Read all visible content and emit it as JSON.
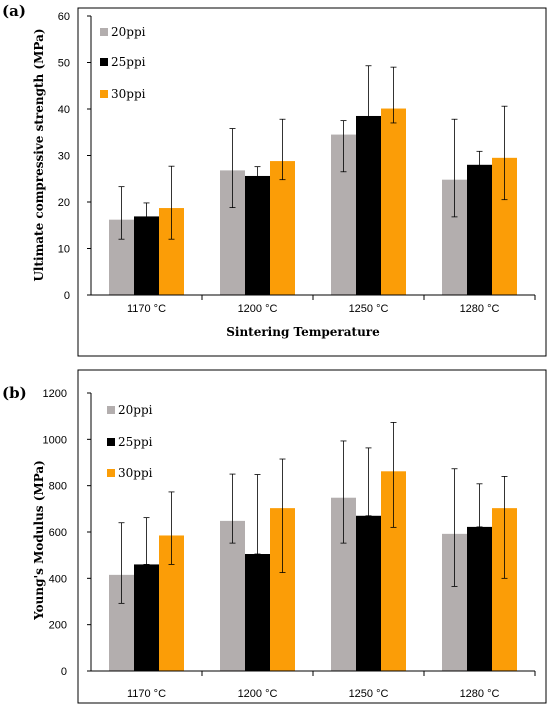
{
  "chart_data": [
    {
      "type": "bar",
      "panel_label": "(a)",
      "categories": [
        "1170 °C",
        "1200 °C",
        "1250 °C",
        "1280 °C"
      ],
      "series": [
        {
          "name": "20ppi",
          "color": "#b3aeae",
          "values": [
            16.2,
            26.8,
            34.5,
            24.8
          ],
          "err_low": [
            12.0,
            18.8,
            26.5,
            16.8
          ],
          "err_high": [
            23.3,
            35.8,
            37.5,
            37.8
          ]
        },
        {
          "name": "25ppi",
          "color": "#000000",
          "values": [
            16.9,
            25.6,
            38.5,
            28.0
          ],
          "err_low": [
            12.0,
            19.2,
            30.3,
            24.0
          ],
          "err_high": [
            19.8,
            27.6,
            49.3,
            30.9
          ]
        },
        {
          "name": "30ppi",
          "color": "#fb9d07",
          "values": [
            18.7,
            28.8,
            40.1,
            29.5
          ],
          "err_low": [
            12.0,
            24.8,
            37.0,
            20.5
          ],
          "err_high": [
            27.7,
            37.8,
            49.0,
            40.6
          ]
        }
      ],
      "ylabel": "Ultimate compressive strength (MPa)",
      "xlabel": "Sintering Temperature",
      "ylim": [
        0,
        60
      ],
      "yticks": [
        "0",
        "10",
        "20",
        "30",
        "40",
        "50",
        "60"
      ],
      "legend_position": "top-left"
    },
    {
      "type": "bar",
      "panel_label": "(b)",
      "categories": [
        "1170 °C",
        "1200 °C",
        "1250 °C",
        "1280 °C"
      ],
      "series": [
        {
          "name": "20ppi",
          "color": "#b3aeae",
          "values": [
            415,
            648,
            748,
            592
          ],
          "err_low": [
            292,
            552,
            552,
            365
          ],
          "err_high": [
            640,
            850,
            993,
            873
          ]
        },
        {
          "name": "25ppi",
          "color": "#000000",
          "values": [
            460,
            505,
            670,
            622
          ],
          "err_low": [
            460,
            505,
            670,
            622
          ],
          "err_high": [
            662,
            848,
            963,
            808
          ]
        },
        {
          "name": "30ppi",
          "color": "#fb9d07",
          "values": [
            585,
            703,
            862,
            703
          ],
          "err_low": [
            460,
            425,
            620,
            400
          ],
          "err_high": [
            773,
            915,
            1073,
            840
          ]
        }
      ],
      "ylabel": "Young's Modulus (MPa)",
      "xlabel": "",
      "ylim": [
        0,
        1200
      ],
      "yticks": [
        "0",
        "200",
        "400",
        "600",
        "800",
        "1000",
        "1200"
      ],
      "legend_position": "top-left"
    }
  ]
}
